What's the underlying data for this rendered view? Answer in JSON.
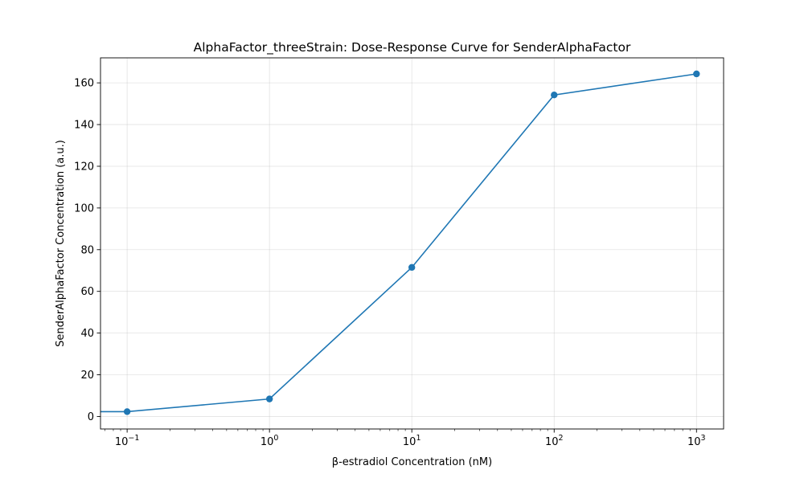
{
  "chart_data": {
    "type": "line",
    "title": "AlphaFactor_threeStrain: Dose-Response Curve for SenderAlphaFactor",
    "xlabel": "β-estradiol Concentration (nM)",
    "ylabel": "SenderAlphaFactor Concentration (a.u.)",
    "xscale": "log",
    "xlim": [
      0.065,
      1550
    ],
    "ylim": [
      -6,
      172
    ],
    "grid": true,
    "x_ticks": [
      {
        "value": 0.1,
        "base": "10",
        "exp": "−1"
      },
      {
        "value": 1,
        "base": "10",
        "exp": "0"
      },
      {
        "value": 10,
        "base": "10",
        "exp": "1"
      },
      {
        "value": 100,
        "base": "10",
        "exp": "2"
      },
      {
        "value": 1000,
        "base": "10",
        "exp": "3"
      }
    ],
    "y_ticks": [
      0,
      20,
      40,
      60,
      80,
      100,
      120,
      140,
      160
    ],
    "series": [
      {
        "color": "#1f77b4",
        "marker": "circle",
        "x": [
          0.05,
          0.1,
          1,
          10,
          100,
          1000
        ],
        "y": [
          2.3,
          2.3,
          8.4,
          71.5,
          154.2,
          164.3
        ],
        "marker_mask": [
          false,
          true,
          true,
          true,
          true,
          true
        ]
      }
    ]
  }
}
